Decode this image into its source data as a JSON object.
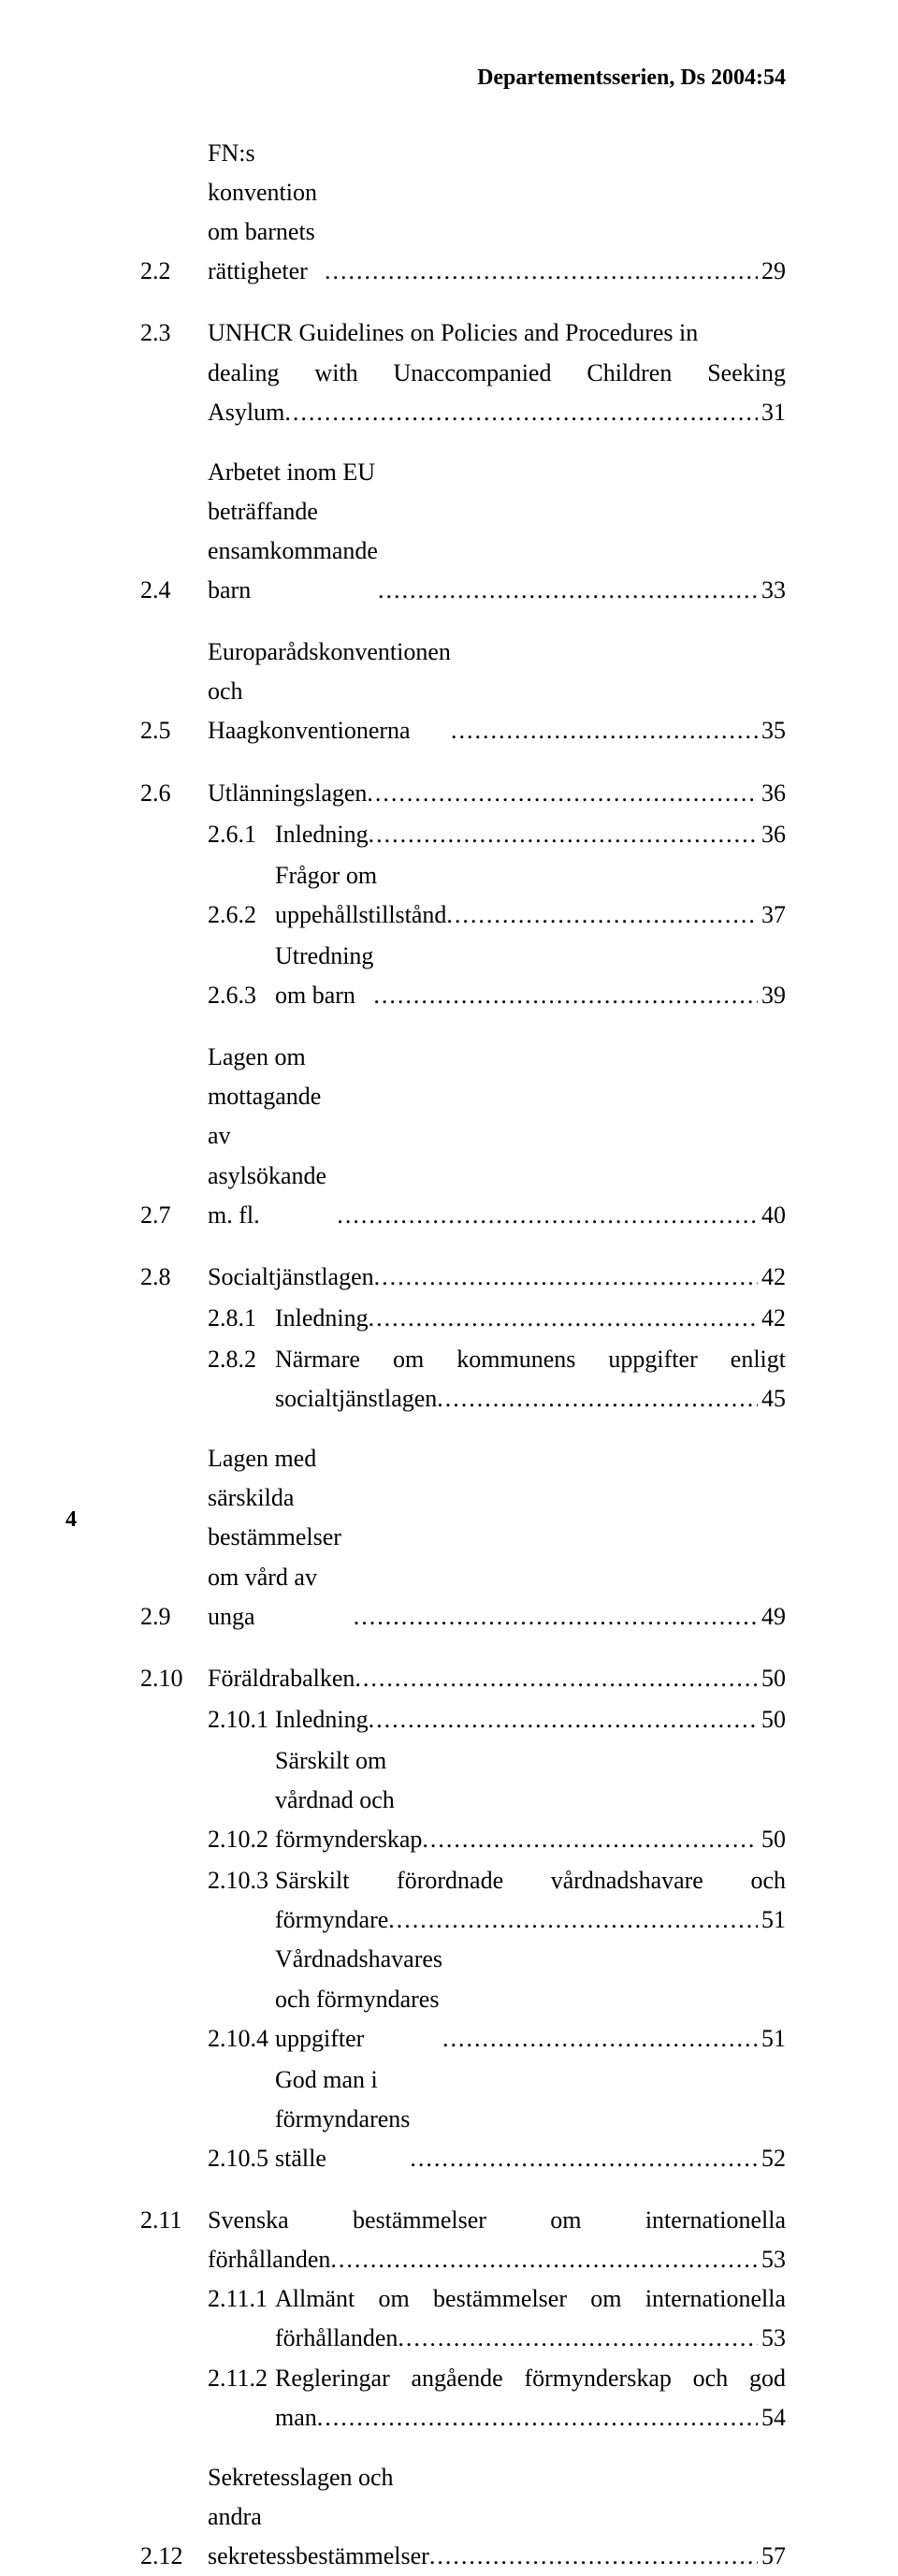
{
  "header": "Departementsserien, Ds 2004:54",
  "page_number": "4",
  "entries": [
    {
      "type": "l1",
      "num": "2.2",
      "title": "FN:s konvention om barnets rättigheter",
      "page": "29",
      "gap_before": false
    },
    {
      "type": "l1-multi",
      "num": "2.3",
      "line1": "UNHCR Guidelines on Policies and Procedures in",
      "line2_indent": true,
      "line2": "dealing with Unaccompanied Children Seeking",
      "line3": "Asylum",
      "page": "31",
      "gap_before": true
    },
    {
      "type": "l1",
      "num": "2.4",
      "title": "Arbetet inom EU beträffande ensamkommande barn",
      "page": "33",
      "gap_before": true
    },
    {
      "type": "l1",
      "num": "2.5",
      "title": "Europarådskonventionen och Haagkonventionerna",
      "page": "35",
      "gap_before": true
    },
    {
      "type": "l1",
      "num": "2.6",
      "title": "Utlänningslagen",
      "page": "36",
      "gap_before": true
    },
    {
      "type": "l2",
      "num": "2.6.1",
      "title": "Inledning",
      "page": "36"
    },
    {
      "type": "l2",
      "num": "2.6.2",
      "title": "Frågor om uppehållstillstånd",
      "page": "37"
    },
    {
      "type": "l2",
      "num": "2.6.3",
      "title": "Utredning om barn",
      "page": "39"
    },
    {
      "type": "l1",
      "num": "2.7",
      "title": "Lagen om mottagande av asylsökande m. fl. ",
      "page": "40",
      "gap_before": true
    },
    {
      "type": "l1",
      "num": "2.8",
      "title": "Socialtjänstlagen",
      "page": "42",
      "gap_before": true
    },
    {
      "type": "l2",
      "num": "2.8.1",
      "title": "Inledning",
      "page": "42"
    },
    {
      "type": "l2-multi",
      "num": "2.8.2",
      "line1": "Närmare om kommunens uppgifter enligt",
      "line2": "socialtjänstlagen",
      "page": "45"
    },
    {
      "type": "l1",
      "num": "2.9",
      "title": "Lagen med särskilda bestämmelser om vård av unga",
      "page": "49",
      "gap_before": true
    },
    {
      "type": "l1",
      "num": "2.10",
      "title": "Föräldrabalken",
      "page": "50",
      "gap_before": true
    },
    {
      "type": "l2",
      "num": "2.10.1",
      "title": "Inledning",
      "page": "50"
    },
    {
      "type": "l2",
      "num": "2.10.2",
      "title": "Särskilt om vårdnad och förmynderskap",
      "page": "50"
    },
    {
      "type": "l2-multi",
      "num": "2.10.3",
      "line1": "Särskilt  förordnade  vårdnadshavare  och",
      "line2": "förmyndare",
      "page": "51"
    },
    {
      "type": "l2",
      "num": "2.10.4",
      "title": "Vårdnadshavares och förmyndares uppgifter",
      "page": "51"
    },
    {
      "type": "l2",
      "num": "2.10.5",
      "title": "God man i förmyndarens ställe",
      "page": "52"
    },
    {
      "type": "l1-multi2",
      "num": "2.11",
      "line1": "Svenska    bestämmelser    om    internationella",
      "line2": "förhållanden",
      "page": "53",
      "gap_before": true
    },
    {
      "type": "l2-multi",
      "num": "2.11.1",
      "line1": "Allmänt om bestämmelser om internationella",
      "line2": "förhållanden",
      "page": "53"
    },
    {
      "type": "l2-multi",
      "num": "2.11.2",
      "line1": "Regleringar angående förmynderskap och god",
      "line2": "man",
      "page": "54"
    },
    {
      "type": "l1",
      "num": "2.12",
      "title": "Sekretesslagen och andra sekretessbestämmelser",
      "page": "57",
      "gap_before": true
    }
  ]
}
